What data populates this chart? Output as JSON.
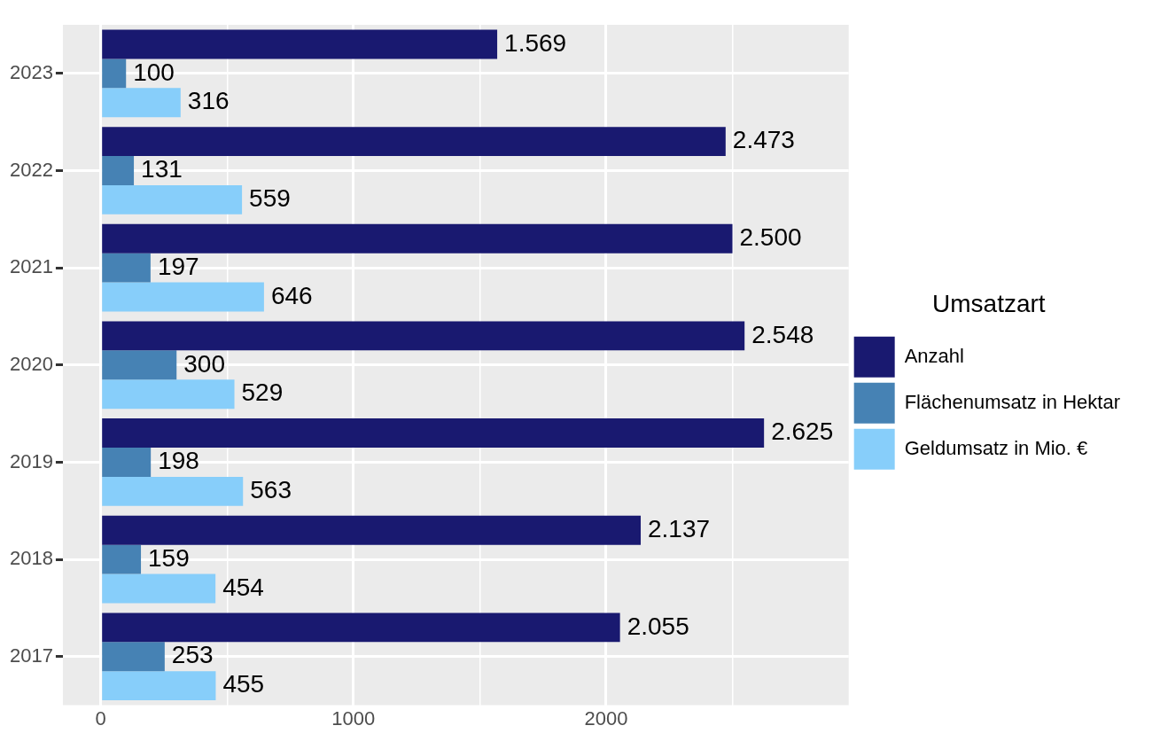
{
  "chart_data": {
    "type": "bar",
    "orientation": "horizontal",
    "categories": [
      "2023",
      "2022",
      "2021",
      "2020",
      "2019",
      "2018",
      "2017"
    ],
    "series": [
      {
        "name": "Anzahl",
        "color": "#191970",
        "values": [
          1569,
          2473,
          2500,
          2548,
          2625,
          2137,
          2055
        ],
        "value_labels": [
          "1.569",
          "2.473",
          "2.500",
          "2.548",
          "2.625",
          "2.137",
          "2.055"
        ]
      },
      {
        "name": "Flächenumsatz in Hektar",
        "color": "#4682b4",
        "values": [
          100,
          131,
          197,
          300,
          198,
          159,
          253
        ],
        "value_labels": [
          "100",
          "131",
          "197",
          "300",
          "198",
          "159",
          "253"
        ]
      },
      {
        "name": "Geldumsatz in Mio. €",
        "color": "#87cefa",
        "values": [
          316,
          559,
          646,
          529,
          563,
          454,
          455
        ],
        "value_labels": [
          "316",
          "559",
          "646",
          "529",
          "563",
          "454",
          "455"
        ]
      }
    ],
    "xlim": [
      -150,
      2960
    ],
    "xticks": [
      0,
      {
        "value": 500,
        "label": null
      },
      1000,
      {
        "value": 1500,
        "label": null
      },
      2000,
      {
        "value": 2500,
        "label": null
      }
    ],
    "grid": true,
    "legend": "right",
    "legend_title": "Umsatzart"
  }
}
